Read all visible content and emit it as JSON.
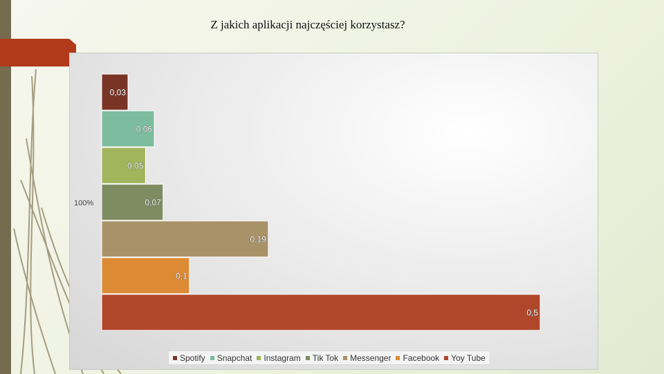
{
  "slide": {
    "title": "Z jakich aplikacji najczęściej korzystasz?"
  },
  "theme": {
    "sidebar_color": "#756b4e",
    "accent_color": "#b03a1a"
  },
  "chart_data": {
    "type": "bar",
    "orientation": "horizontal",
    "category_label": "100%",
    "series": [
      {
        "name": "Spotify",
        "value": 0.03,
        "label": "0,03",
        "color": "#7a3426"
      },
      {
        "name": "Snapchat",
        "value": 0.06,
        "label": "0,06",
        "color": "#7dbc9e"
      },
      {
        "name": "Instagram",
        "value": 0.05,
        "label": "0,05",
        "color": "#a0b55c"
      },
      {
        "name": "Tik Tok",
        "value": 0.07,
        "label": "0,07",
        "color": "#7e8c62"
      },
      {
        "name": "Messenger",
        "value": 0.19,
        "label": "0,19",
        "color": "#a89268"
      },
      {
        "name": "Facebook",
        "value": 0.1,
        "label": "0,1",
        "color": "#dd8a34"
      },
      {
        "name": "Yoy Tube",
        "value": 0.5,
        "label": "0,5",
        "color": "#b0472b"
      }
    ],
    "xlim": [
      0,
      0.5
    ],
    "grid": false,
    "legend_position": "bottom"
  }
}
